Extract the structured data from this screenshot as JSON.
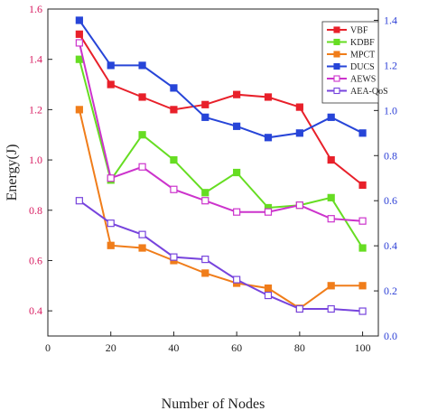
{
  "chart_data": {
    "type": "line",
    "xlabel": "Number of Nodes",
    "ylabel": "Energy(J)",
    "x": [
      10,
      20,
      30,
      40,
      50,
      60,
      70,
      80,
      90,
      100
    ],
    "xlim": [
      0,
      105
    ],
    "xticks": [
      0,
      20,
      40,
      60,
      80,
      100
    ],
    "ylim_left": [
      0.3,
      1.6
    ],
    "yticks_left": [
      0.4,
      0.6,
      0.8,
      1.0,
      1.2,
      1.4,
      1.6
    ],
    "ylim_right": [
      0.0,
      1.45
    ],
    "yticks_right": [
      0.0,
      0.2,
      0.4,
      0.6,
      0.8,
      1.0,
      1.2,
      1.4
    ],
    "grid": false,
    "legend_position": "top-right",
    "left_axis_color": "#d81b60",
    "right_axis_color": "#2c3fd6",
    "series": [
      {
        "name": "VBF",
        "axis": "left",
        "color": "#e8202a",
        "marker": "square-filled",
        "values": [
          1.5,
          1.3,
          1.25,
          1.2,
          1.22,
          1.26,
          1.25,
          1.21,
          1.0,
          0.9
        ]
      },
      {
        "name": "KDBF",
        "axis": "left",
        "color": "#66dd22",
        "marker": "square-filled",
        "values": [
          1.4,
          0.92,
          1.1,
          1.0,
          0.87,
          0.95,
          0.81,
          0.82,
          0.85,
          0.65
        ]
      },
      {
        "name": "MPCT",
        "axis": "left",
        "color": "#f07d1a",
        "marker": "square-filled",
        "values": [
          1.2,
          0.66,
          0.65,
          0.6,
          0.55,
          0.51,
          0.49,
          0.41,
          0.5,
          0.5
        ]
      },
      {
        "name": "DUCS",
        "axis": "right",
        "color": "#2745d8",
        "marker": "square-filled",
        "values": [
          1.4,
          1.2,
          1.2,
          1.1,
          0.97,
          0.93,
          0.88,
          0.9,
          0.97,
          0.9
        ]
      },
      {
        "name": "AEWS",
        "axis": "right",
        "color": "#cc33cc",
        "marker": "square-open",
        "values": [
          1.3,
          0.7,
          0.75,
          0.65,
          0.6,
          0.55,
          0.55,
          0.58,
          0.52,
          0.51
        ]
      },
      {
        "name": "AEA-QoS",
        "axis": "right",
        "color": "#7744dd",
        "marker": "square-open",
        "values": [
          0.6,
          0.5,
          0.45,
          0.35,
          0.34,
          0.25,
          0.18,
          0.12,
          0.12,
          0.11
        ]
      }
    ]
  }
}
